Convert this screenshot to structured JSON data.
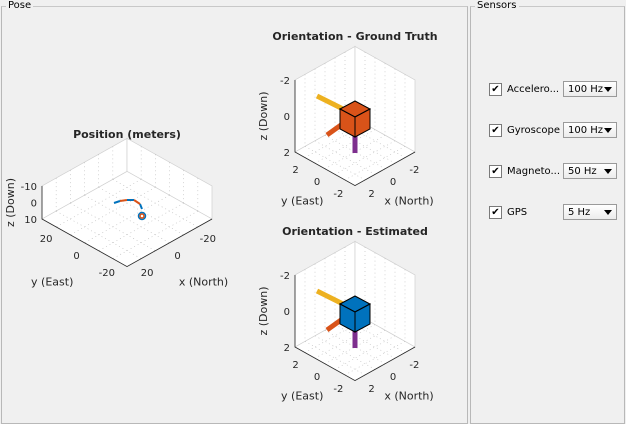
{
  "pose_panel": {
    "title": "Pose"
  },
  "sensors_panel": {
    "title": "Sensors",
    "sensors": [
      {
        "label": "Accelero...",
        "checked": true,
        "rate": "100 Hz"
      },
      {
        "label": "Gyroscope",
        "checked": true,
        "rate": "100 Hz"
      },
      {
        "label": "Magneto...",
        "checked": true,
        "rate": "50 Hz"
      },
      {
        "label": "GPS",
        "checked": true,
        "rate": "5 Hz"
      }
    ]
  },
  "plots": {
    "position": {
      "title": "Position (meters)",
      "zlabel": "z (Down)",
      "ylabel": "y (East)",
      "xlabel": "x (North)",
      "zticks": [
        "-10",
        "0",
        "10"
      ],
      "yticks": [
        "20",
        "0",
        "-20"
      ],
      "xticks": [
        "20",
        "0",
        "-20"
      ]
    },
    "ground_truth": {
      "title": "Orientation - Ground Truth",
      "zlabel": "z (Down)",
      "ylabel": "y (East)",
      "xlabel": "x (North)",
      "zticks": [
        "-2",
        "0",
        "2"
      ],
      "yticks": [
        "2",
        "0",
        "-2"
      ],
      "xticks": [
        "2",
        "0",
        "-2"
      ],
      "cube_color": "#d95319"
    },
    "estimated": {
      "title": "Orientation - Estimated",
      "zlabel": "z (Down)",
      "ylabel": "y (East)",
      "xlabel": "x (North)",
      "zticks": [
        "-2",
        "0",
        "2"
      ],
      "yticks": [
        "2",
        "0",
        "-2"
      ],
      "xticks": [
        "2",
        "0",
        "-2"
      ],
      "cube_color": "#0072bd"
    }
  },
  "colors": {
    "x_axis": "#d95319",
    "y_axis": "#edb120",
    "z_axis": "#7e2f8e",
    "trajectory_true": "#d95319",
    "trajectory_est": "#0072bd"
  }
}
